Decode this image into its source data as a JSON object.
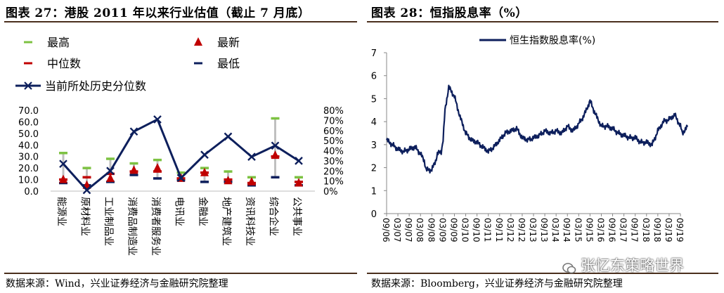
{
  "left_panel": {
    "title": "图表 27：港股 2011 年以来行业估值（截止 7 月底）",
    "source": "数据来源：Wind，兴业证券经济与金融研究院整理"
  },
  "right_panel": {
    "title": "图表 28：恒指股息率（%）",
    "source": "数据来源：Bloomberg，兴业证券经济与金融研究院整理"
  },
  "watermark": "张忆东策略世界",
  "colors": {
    "navy": "#0d1f5c",
    "red": "#c00000",
    "green": "#7dc242",
    "gray": "#c0c0c0",
    "rule": "#4a2f1d"
  },
  "chart_data": [
    {
      "type": "line",
      "title": "",
      "categories": [
        "能源业",
        "原材料业",
        "工业制品业",
        "消费品制造业",
        "消费者服务业",
        "电讯业",
        "金融业",
        "地产建筑业",
        "资讯科技业",
        "综合企业",
        "公共事业"
      ],
      "legend": [
        "最高",
        "最新",
        "中位数",
        "最低",
        "当前所处历史分位数"
      ],
      "legend_position": "top",
      "y_left": {
        "ticks": [
          "0.0",
          "10.0",
          "20.0",
          "30.0",
          "40.0",
          "50.0",
          "60.0",
          "70.0"
        ],
        "range": [
          0,
          70
        ]
      },
      "y_right": {
        "ticks": [
          "0%",
          "10%",
          "20%",
          "30%",
          "40%",
          "50%",
          "60%",
          "70%",
          "80%"
        ],
        "range": [
          0,
          0.8
        ]
      },
      "series": [
        {
          "name": "最高",
          "marker": "dash",
          "values": [
            33,
            20,
            28,
            24,
            27,
            16,
            20,
            17,
            12,
            63,
            12
          ]
        },
        {
          "name": "最新",
          "marker": "triangle",
          "values": [
            10,
            5,
            11,
            18,
            20,
            11,
            16,
            9,
            8,
            31,
            7
          ]
        },
        {
          "name": "中位数",
          "marker": "dash",
          "values": [
            10,
            12,
            15,
            17,
            17,
            11,
            16,
            10,
            7,
            30,
            8
          ]
        },
        {
          "name": "最低",
          "marker": "dash",
          "values": [
            7,
            5,
            8,
            14,
            11,
            10,
            8,
            8,
            5,
            12,
            5
          ]
        },
        {
          "name": "当前所处历史分位数",
          "axis": "right",
          "marker": "x",
          "values": [
            0.27,
            0.01,
            0.2,
            0.59,
            0.71,
            0.13,
            0.36,
            0.54,
            0.34,
            0.45,
            0.3
          ]
        }
      ]
    },
    {
      "type": "line",
      "title": "",
      "legend": [
        "恒生指数股息率(%)"
      ],
      "legend_position": "top",
      "y_ticks": [
        "0",
        "1",
        "2",
        "3",
        "4",
        "5",
        "6",
        "7"
      ],
      "ylim": [
        0,
        7
      ],
      "x_ticks": [
        "09/06",
        "03/07",
        "09/07",
        "03/08",
        "09/08",
        "03/09",
        "09/09",
        "03/10",
        "09/10",
        "03/11",
        "09/11",
        "03/12",
        "09/12",
        "03/13",
        "09/13",
        "03/14",
        "09/14",
        "03/15",
        "09/15",
        "03/16",
        "09/16",
        "03/17",
        "09/17",
        "03/18",
        "09/18",
        "03/19",
        "09/19"
      ],
      "series": [
        {
          "name": "恒生指数股息率(%)",
          "x": [
            0,
            3,
            6,
            9,
            12,
            15,
            18,
            20,
            21,
            24,
            26,
            27,
            29,
            30,
            31,
            33,
            36,
            39,
            42,
            45,
            48,
            51,
            54,
            57,
            60,
            63,
            66,
            69,
            72,
            75,
            78,
            81,
            84,
            87,
            90,
            93,
            96,
            99,
            102,
            105,
            108,
            111,
            114,
            117,
            120,
            123,
            126,
            129,
            132,
            135,
            138,
            141,
            144,
            147,
            150,
            153,
            156,
            157,
            160
          ],
          "y": [
            3.2,
            3.0,
            2.8,
            2.7,
            2.8,
            2.9,
            2.6,
            2.3,
            1.9,
            1.9,
            2.3,
            2.6,
            2.7,
            3.2,
            4.5,
            5.5,
            5.1,
            4.2,
            3.5,
            3.2,
            3.1,
            2.9,
            2.7,
            2.9,
            3.2,
            3.5,
            3.6,
            3.7,
            3.3,
            3.2,
            3.3,
            3.4,
            3.6,
            3.5,
            3.6,
            3.5,
            3.8,
            3.6,
            3.9,
            4.3,
            4.9,
            4.3,
            3.8,
            3.8,
            3.7,
            3.5,
            3.4,
            3.3,
            3.3,
            3.1,
            3.1,
            3.0,
            3.6,
            4.0,
            4.1,
            4.3,
            3.8,
            3.5,
            3.8
          ]
        }
      ]
    }
  ]
}
